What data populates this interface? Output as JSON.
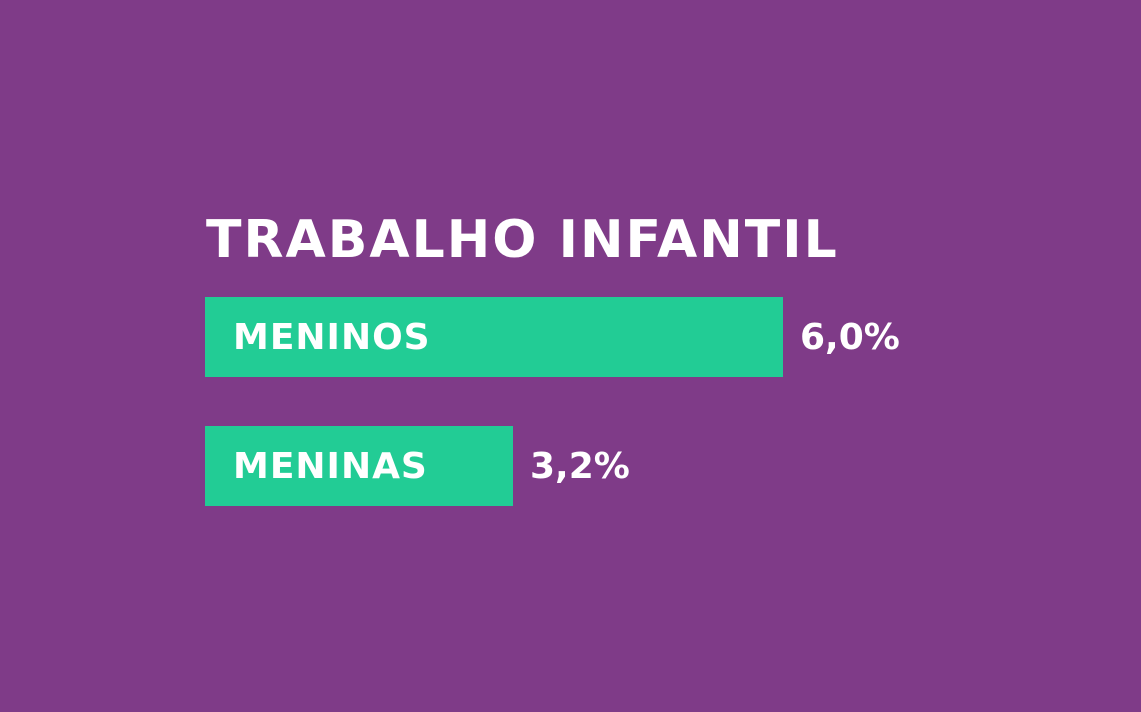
{
  "colors": {
    "background": "#7f3b88",
    "bar": "#22cc95",
    "text": "#ffffff"
  },
  "chart_data": {
    "type": "bar",
    "orientation": "horizontal",
    "title": "TRABALHO INFANTIL",
    "categories": [
      "MENINOS",
      "MENINAS"
    ],
    "values": [
      6.0,
      3.2
    ],
    "value_labels": [
      "6,0%",
      "3,2%"
    ],
    "unit": "%",
    "xlim": [
      0,
      6.0
    ],
    "grid": false,
    "legend": "none"
  }
}
